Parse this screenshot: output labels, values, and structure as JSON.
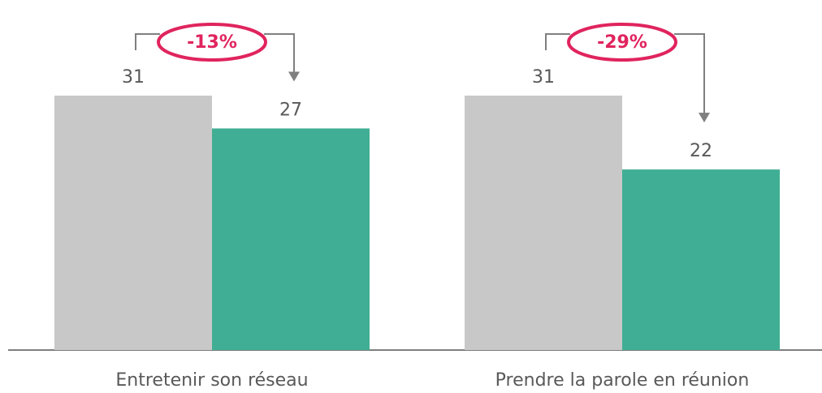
{
  "chart_data": {
    "type": "bar",
    "categories": [
      "Entretenir son réseau",
      "Prendre la parole en réunion"
    ],
    "series": [
      {
        "color": "#c8c8c8",
        "values": [
          31,
          31
        ]
      },
      {
        "color": "#40ae94",
        "values": [
          27,
          22
        ]
      }
    ],
    "annotations": [
      "-13%",
      "-29%"
    ],
    "annotation_color": "#e0245e"
  }
}
